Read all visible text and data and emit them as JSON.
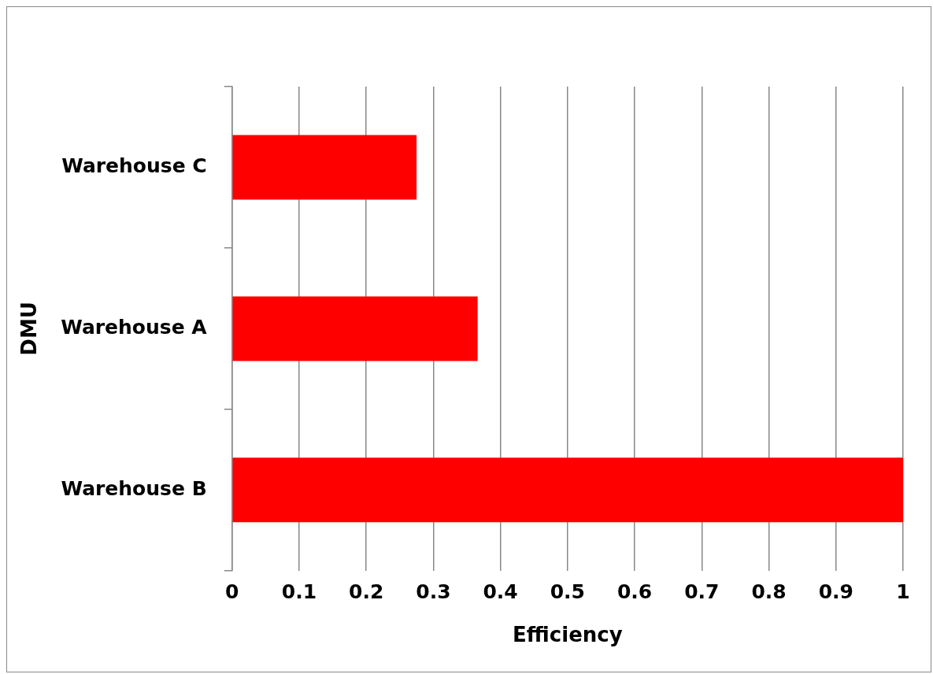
{
  "chart_data": {
    "type": "bar",
    "orientation": "horizontal",
    "xlabel": "Efficiency",
    "ylabel": "DMU",
    "categories": [
      "Warehouse C",
      "Warehouse A",
      "Warehouse B"
    ],
    "values": [
      0.275,
      0.366,
      1
    ],
    "color": "#ff0000",
    "xlim": [
      0,
      1
    ],
    "xticks": [
      0,
      0.1,
      0.2,
      0.3,
      0.4,
      0.5,
      0.6,
      0.7,
      0.8,
      0.9,
      1
    ],
    "grid": "x",
    "legend": false
  }
}
